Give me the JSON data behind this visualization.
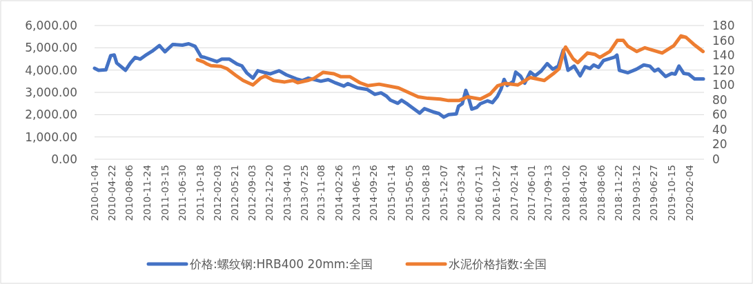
{
  "chart_data": {
    "type": "line",
    "grid": "y",
    "legend": "bottom",
    "line_style": "solid",
    "marker": "none",
    "xlim": [
      "2010-01-04",
      "2020-05-05"
    ],
    "xticks": [
      "2010-01-04",
      "2010-04-22",
      "2010-08-06",
      "2010-11-24",
      "2011-03-15",
      "2011-06-30",
      "2011-10-18",
      "2012-02-03",
      "2012-05-21",
      "2012-09-03",
      "2012-12-20",
      "2013-04-10",
      "2013-07-25",
      "2013-11-08",
      "2014-02-26",
      "2014-06-13",
      "2014-09-26",
      "2015-01-14",
      "2015-05-05",
      "2015-08-18",
      "2015-12-07",
      "2016-03-24",
      "2016-07-11",
      "2016-10-27",
      "2017-02-14",
      "2017-06-01",
      "2017-09-13",
      "2018-01-02",
      "2018-04-20",
      "2018-08-06",
      "2018-11-22",
      "2019-03-12",
      "2019-06-27",
      "2019-10-15",
      "2020-02-04"
    ],
    "ylim": [
      0,
      6000
    ],
    "yticks": [
      {
        "value": 0,
        "label": "0.00"
      },
      {
        "value": 1000,
        "label": "1,000.00"
      },
      {
        "value": 2000,
        "label": "2,000.00"
      },
      {
        "value": 3000,
        "label": "3,000.00"
      },
      {
        "value": 4000,
        "label": "4,000.00"
      },
      {
        "value": 5000,
        "label": "5,000.00"
      },
      {
        "value": 6000,
        "label": "6,000.00"
      }
    ],
    "y2lim": [
      0,
      180
    ],
    "y2ticks": [
      0,
      20,
      40,
      60,
      80,
      100,
      120,
      140,
      160,
      180
    ],
    "series": [
      {
        "name": "价格:螺纹钢:HRB400 20mm:全国",
        "color": "#4472c4",
        "x": [
          "2010-01-04",
          "2010-01-29",
          "2010-03-15",
          "2010-04-14",
          "2010-05-06",
          "2010-05-21",
          "2010-07-15",
          "2010-08-14",
          "2010-09-13",
          "2010-10-14",
          "2010-11-13",
          "2010-12-27",
          "2011-02-10",
          "2011-03-16",
          "2011-05-03",
          "2011-07-02",
          "2011-08-10",
          "2011-09-18",
          "2011-10-26",
          "2011-11-17",
          "2012-02-01",
          "2012-03-02",
          "2012-04-18",
          "2012-06-04",
          "2012-07-04",
          "2012-08-03",
          "2012-09-11",
          "2012-10-11",
          "2012-11-27",
          "2012-12-27",
          "2013-02-20",
          "2013-04-05",
          "2013-06-06",
          "2013-07-14",
          "2013-08-20",
          "2013-11-05",
          "2013-12-21",
          "2014-02-06",
          "2014-03-28",
          "2014-04-21",
          "2014-06-21",
          "2014-08-20",
          "2014-10-06",
          "2014-11-13",
          "2014-12-17",
          "2015-01-10",
          "2015-02-25",
          "2015-03-20",
          "2015-04-27",
          "2015-07-10",
          "2015-08-09",
          "2015-10-08",
          "2015-11-07",
          "2015-12-07",
          "2016-01-06",
          "2016-02-22",
          "2016-03-07",
          "2016-03-30",
          "2016-04-21",
          "2016-05-06",
          "2016-05-28",
          "2016-06-27",
          "2016-07-20",
          "2016-09-03",
          "2016-10-03",
          "2016-11-02",
          "2016-11-25",
          "2016-12-14",
          "2017-01-02",
          "2017-02-09",
          "2017-02-24",
          "2017-03-25",
          "2017-04-21",
          "2017-05-25",
          "2017-06-24",
          "2017-08-01",
          "2017-09-07",
          "2017-10-12",
          "2017-11-15",
          "2017-12-15",
          "2017-12-27",
          "2018-01-14",
          "2018-02-21",
          "2018-03-30",
          "2018-04-30",
          "2018-05-30",
          "2018-06-22",
          "2018-07-22",
          "2018-08-22",
          "2018-09-28",
          "2018-10-29",
          "2018-11-13",
          "2018-11-28",
          "2019-01-20",
          "2019-03-14",
          "2019-04-28",
          "2019-06-04",
          "2019-07-04",
          "2019-07-27",
          "2019-09-10",
          "2019-10-18",
          "2019-11-09",
          "2019-12-02",
          "2020-01-01",
          "2020-01-31",
          "2020-03-08",
          "2020-05-01"
        ],
        "values": [
          4080,
          3990,
          4010,
          4650,
          4680,
          4320,
          3990,
          4320,
          4570,
          4490,
          4650,
          4850,
          5100,
          4820,
          5150,
          5120,
          5180,
          5070,
          4600,
          4570,
          4380,
          4490,
          4490,
          4270,
          4190,
          3880,
          3640,
          3970,
          3880,
          3830,
          3970,
          3790,
          3610,
          3530,
          3640,
          3500,
          3570,
          3420,
          3280,
          3390,
          3200,
          3130,
          2910,
          2980,
          2830,
          2650,
          2510,
          2650,
          2470,
          2070,
          2270,
          2110,
          2050,
          1890,
          2000,
          2030,
          2380,
          2490,
          3090,
          2810,
          2250,
          2320,
          2490,
          2620,
          2540,
          2810,
          3140,
          3580,
          3310,
          3490,
          3910,
          3740,
          3410,
          3910,
          3740,
          3960,
          4290,
          4040,
          4180,
          4890,
          4560,
          3990,
          4180,
          3740,
          4150,
          4070,
          4230,
          4120,
          4430,
          4510,
          4580,
          4670,
          3990,
          3880,
          4040,
          4230,
          4180,
          3960,
          4040,
          3710,
          3850,
          3820,
          4180,
          3850,
          3820,
          3600,
          3600
        ]
      },
      {
        "name": "水泥价格指数:全国",
        "color": "#ed7d31",
        "axis": "y2",
        "x": [
          "2011-10-03",
          "2011-11-10",
          "2011-12-03",
          "2011-12-26",
          "2012-02-25",
          "2012-04-02",
          "2012-05-27",
          "2012-07-12",
          "2012-09-11",
          "2012-10-27",
          "2012-11-26",
          "2013-01-17",
          "2013-03-27",
          "2013-05-16",
          "2013-06-15",
          "2013-08-15",
          "2013-09-25",
          "2013-11-20",
          "2014-01-25",
          "2014-03-10",
          "2014-05-05",
          "2014-07-05",
          "2014-08-25",
          "2014-11-01",
          "2015-03-01",
          "2015-07-01",
          "2015-08-30",
          "2015-11-15",
          "2016-01-05",
          "2016-03-10",
          "2016-05-02",
          "2016-07-20",
          "2016-09-20",
          "2016-11-05",
          "2016-12-20",
          "2017-03-10",
          "2017-05-25",
          "2017-08-20",
          "2017-10-20",
          "2017-11-20",
          "2017-12-20",
          "2017-12-30",
          "2018-02-15",
          "2018-03-15",
          "2018-05-15",
          "2018-07-01",
          "2018-07-30",
          "2018-09-30",
          "2018-11-15",
          "2018-12-22",
          "2019-01-20",
          "2019-03-15",
          "2019-05-05",
          "2019-06-20",
          "2019-08-20",
          "2019-11-01",
          "2019-12-15",
          "2020-01-15",
          "2020-03-01",
          "2020-04-29"
        ],
        "values": [
          134,
          131,
          128,
          126,
          125,
          122,
          113,
          106,
          100,
          109,
          112,
          106,
          104,
          106,
          103,
          106,
          109,
          117,
          115,
          111,
          111,
          103,
          99,
          101,
          96,
          84,
          82,
          81,
          79,
          79,
          84,
          81,
          88,
          99,
          102,
          100,
          110,
          106,
          116,
          122,
          147,
          151,
          135,
          130,
          143,
          141,
          137,
          145,
          160,
          160,
          152,
          145,
          150,
          147,
          143,
          153,
          166,
          164,
          155,
          145
        ]
      }
    ]
  }
}
